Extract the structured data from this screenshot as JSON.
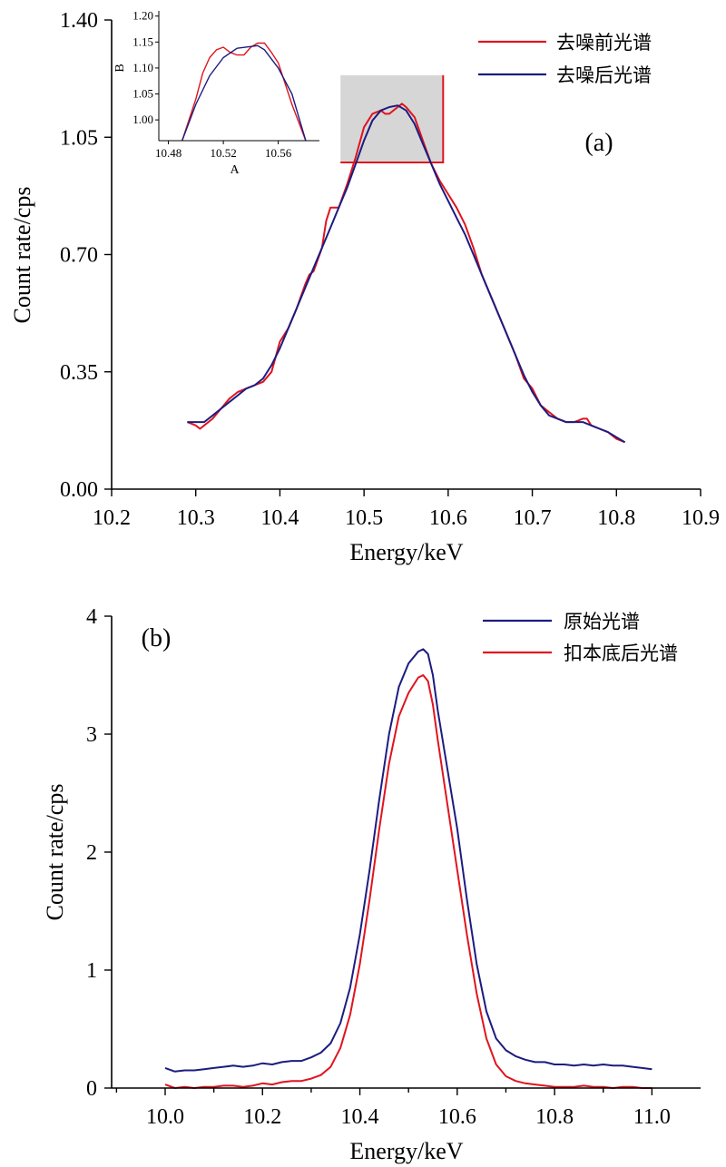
{
  "colors": {
    "red": "#e0141e",
    "blue": "#1c1c80",
    "zoom_box_fill": "#d6d6d6",
    "zoom_box_edge": "#e0141e"
  },
  "chart_data": [
    {
      "id": "a",
      "type": "line",
      "panel_label": "(a)",
      "xlabel": "Energy/keV",
      "ylabel": "Count rate/cps",
      "xlim": [
        10.2,
        10.9
      ],
      "ylim": [
        0,
        1.4
      ],
      "xticks": [
        "10.2",
        "10.3",
        "10.4",
        "10.5",
        "10.6",
        "10.7",
        "10.8",
        "10.9"
      ],
      "yticks": [
        "0.00",
        "0.35",
        "0.70",
        "1.05",
        "1.40"
      ],
      "legend_position": "top-right",
      "series": [
        {
          "name": "去噪前光谱",
          "color": "red",
          "x": [
            10.29,
            10.3,
            10.305,
            10.31,
            10.32,
            10.33,
            10.34,
            10.35,
            10.36,
            10.37,
            10.38,
            10.39,
            10.4,
            10.41,
            10.42,
            10.43,
            10.435,
            10.44,
            10.45,
            10.455,
            10.46,
            10.465,
            10.47,
            10.48,
            10.49,
            10.5,
            10.51,
            10.52,
            10.525,
            10.53,
            10.54,
            10.545,
            10.55,
            10.56,
            10.57,
            10.58,
            10.59,
            10.6,
            10.61,
            10.62,
            10.63,
            10.64,
            10.65,
            10.66,
            10.67,
            10.68,
            10.69,
            10.7,
            10.71,
            10.72,
            10.73,
            10.74,
            10.75,
            10.76,
            10.765,
            10.77,
            10.78,
            10.79,
            10.8,
            10.81
          ],
          "y": [
            0.2,
            0.19,
            0.18,
            0.19,
            0.21,
            0.24,
            0.27,
            0.29,
            0.3,
            0.31,
            0.32,
            0.35,
            0.44,
            0.48,
            0.54,
            0.61,
            0.64,
            0.65,
            0.72,
            0.8,
            0.84,
            0.84,
            0.84,
            0.91,
            0.99,
            1.08,
            1.12,
            1.13,
            1.12,
            1.12,
            1.14,
            1.15,
            1.14,
            1.11,
            1.04,
            0.97,
            0.92,
            0.88,
            0.84,
            0.79,
            0.72,
            0.64,
            0.58,
            0.52,
            0.46,
            0.4,
            0.33,
            0.3,
            0.25,
            0.23,
            0.21,
            0.2,
            0.2,
            0.21,
            0.21,
            0.19,
            0.18,
            0.17,
            0.15,
            0.14
          ]
        },
        {
          "name": "去噪后光谱",
          "color": "blue",
          "x": [
            10.29,
            10.3,
            10.31,
            10.32,
            10.33,
            10.34,
            10.35,
            10.36,
            10.37,
            10.38,
            10.39,
            10.4,
            10.41,
            10.42,
            10.43,
            10.44,
            10.45,
            10.46,
            10.47,
            10.48,
            10.49,
            10.5,
            10.51,
            10.52,
            10.53,
            10.54,
            10.55,
            10.56,
            10.57,
            10.58,
            10.59,
            10.6,
            10.61,
            10.62,
            10.63,
            10.64,
            10.65,
            10.66,
            10.67,
            10.68,
            10.69,
            10.7,
            10.71,
            10.72,
            10.73,
            10.74,
            10.75,
            10.76,
            10.77,
            10.78,
            10.79,
            10.8,
            10.81
          ],
          "y": [
            0.2,
            0.2,
            0.2,
            0.22,
            0.24,
            0.26,
            0.28,
            0.3,
            0.31,
            0.33,
            0.37,
            0.42,
            0.48,
            0.54,
            0.6,
            0.66,
            0.72,
            0.78,
            0.84,
            0.9,
            0.97,
            1.04,
            1.1,
            1.13,
            1.14,
            1.145,
            1.13,
            1.09,
            1.03,
            0.97,
            0.91,
            0.86,
            0.81,
            0.76,
            0.7,
            0.64,
            0.58,
            0.52,
            0.46,
            0.4,
            0.34,
            0.29,
            0.25,
            0.22,
            0.21,
            0.2,
            0.2,
            0.2,
            0.19,
            0.18,
            0.17,
            0.155,
            0.14
          ]
        }
      ],
      "inset": {
        "xlabel": "A",
        "ylabel": "B",
        "xlim": [
          10.473,
          10.59
        ],
        "ylim": [
          0.96,
          1.21
        ],
        "xticks": [
          "10.48",
          "10.52",
          "10.56"
        ],
        "yticks": [
          "1.00",
          "1.05",
          "1.10",
          "1.15",
          "1.20"
        ],
        "series": [
          {
            "color": "red",
            "x": [
              10.49,
              10.5,
              10.505,
              10.51,
              10.515,
              10.52,
              10.525,
              10.53,
              10.535,
              10.54,
              10.545,
              10.55,
              10.555,
              10.56,
              10.565,
              10.57,
              10.58
            ],
            "y": [
              0.96,
              1.04,
              1.09,
              1.12,
              1.135,
              1.14,
              1.13,
              1.125,
              1.125,
              1.14,
              1.148,
              1.148,
              1.13,
              1.11,
              1.07,
              1.03,
              0.96
            ]
          },
          {
            "color": "blue",
            "x": [
              10.49,
              10.5,
              10.51,
              10.52,
              10.53,
              10.545,
              10.55,
              10.56,
              10.57,
              10.58
            ],
            "y": [
              0.96,
              1.03,
              1.085,
              1.12,
              1.138,
              1.143,
              1.135,
              1.1,
              1.05,
              0.96
            ]
          }
        ]
      },
      "zoom_box": {
        "x": [
          10.472,
          10.594
        ],
        "y": [
          0.975,
          1.235
        ]
      }
    },
    {
      "id": "b",
      "type": "line",
      "panel_label": "(b)",
      "xlabel": "Energy/keV",
      "ylabel": "Count rate/cps",
      "xlim": [
        9.89,
        11.1
      ],
      "ylim": [
        0,
        4
      ],
      "xticks": [
        "10.0",
        "10.2",
        "10.4",
        "10.6",
        "10.8",
        "11.0"
      ],
      "yticks": [
        "0",
        "1",
        "2",
        "3",
        "4"
      ],
      "legend_position": "top-right",
      "series": [
        {
          "name": "原始光谱",
          "color": "blue",
          "x": [
            10.0,
            10.02,
            10.04,
            10.06,
            10.08,
            10.1,
            10.12,
            10.14,
            10.16,
            10.18,
            10.2,
            10.22,
            10.24,
            10.26,
            10.28,
            10.3,
            10.32,
            10.34,
            10.36,
            10.38,
            10.4,
            10.42,
            10.44,
            10.46,
            10.48,
            10.5,
            10.52,
            10.53,
            10.54,
            10.55,
            10.56,
            10.58,
            10.6,
            10.62,
            10.64,
            10.66,
            10.68,
            10.7,
            10.72,
            10.74,
            10.76,
            10.78,
            10.8,
            10.82,
            10.84,
            10.86,
            10.88,
            10.9,
            10.92,
            10.94,
            10.96,
            10.98,
            11.0
          ],
          "y": [
            0.17,
            0.14,
            0.15,
            0.15,
            0.16,
            0.17,
            0.18,
            0.19,
            0.18,
            0.19,
            0.21,
            0.2,
            0.22,
            0.23,
            0.23,
            0.26,
            0.3,
            0.38,
            0.55,
            0.85,
            1.3,
            1.85,
            2.45,
            3.0,
            3.4,
            3.6,
            3.7,
            3.72,
            3.68,
            3.5,
            3.2,
            2.7,
            2.2,
            1.6,
            1.05,
            0.65,
            0.42,
            0.32,
            0.27,
            0.24,
            0.22,
            0.22,
            0.2,
            0.2,
            0.19,
            0.2,
            0.19,
            0.2,
            0.19,
            0.19,
            0.18,
            0.17,
            0.16
          ]
        },
        {
          "name": "扣本底后光谱",
          "color": "red",
          "x": [
            10.0,
            10.02,
            10.04,
            10.06,
            10.08,
            10.1,
            10.12,
            10.14,
            10.16,
            10.18,
            10.2,
            10.22,
            10.24,
            10.26,
            10.28,
            10.3,
            10.32,
            10.34,
            10.36,
            10.38,
            10.4,
            10.42,
            10.44,
            10.46,
            10.48,
            10.5,
            10.52,
            10.53,
            10.54,
            10.55,
            10.56,
            10.58,
            10.6,
            10.62,
            10.64,
            10.66,
            10.68,
            10.7,
            10.72,
            10.74,
            10.76,
            10.78,
            10.8,
            10.82,
            10.84,
            10.86,
            10.88,
            10.9,
            10.92,
            10.94,
            10.96,
            10.98,
            11.0
          ],
          "y": [
            0.03,
            0.0,
            0.01,
            0.0,
            0.01,
            0.01,
            0.02,
            0.02,
            0.01,
            0.02,
            0.04,
            0.03,
            0.05,
            0.06,
            0.06,
            0.08,
            0.11,
            0.18,
            0.34,
            0.62,
            1.05,
            1.6,
            2.2,
            2.75,
            3.15,
            3.35,
            3.48,
            3.5,
            3.45,
            3.25,
            2.95,
            2.4,
            1.85,
            1.3,
            0.8,
            0.42,
            0.2,
            0.1,
            0.06,
            0.04,
            0.03,
            0.02,
            0.01,
            0.01,
            0.01,
            0.02,
            0.01,
            0.01,
            0.0,
            0.01,
            0.01,
            0.0,
            0.0
          ]
        }
      ]
    }
  ]
}
